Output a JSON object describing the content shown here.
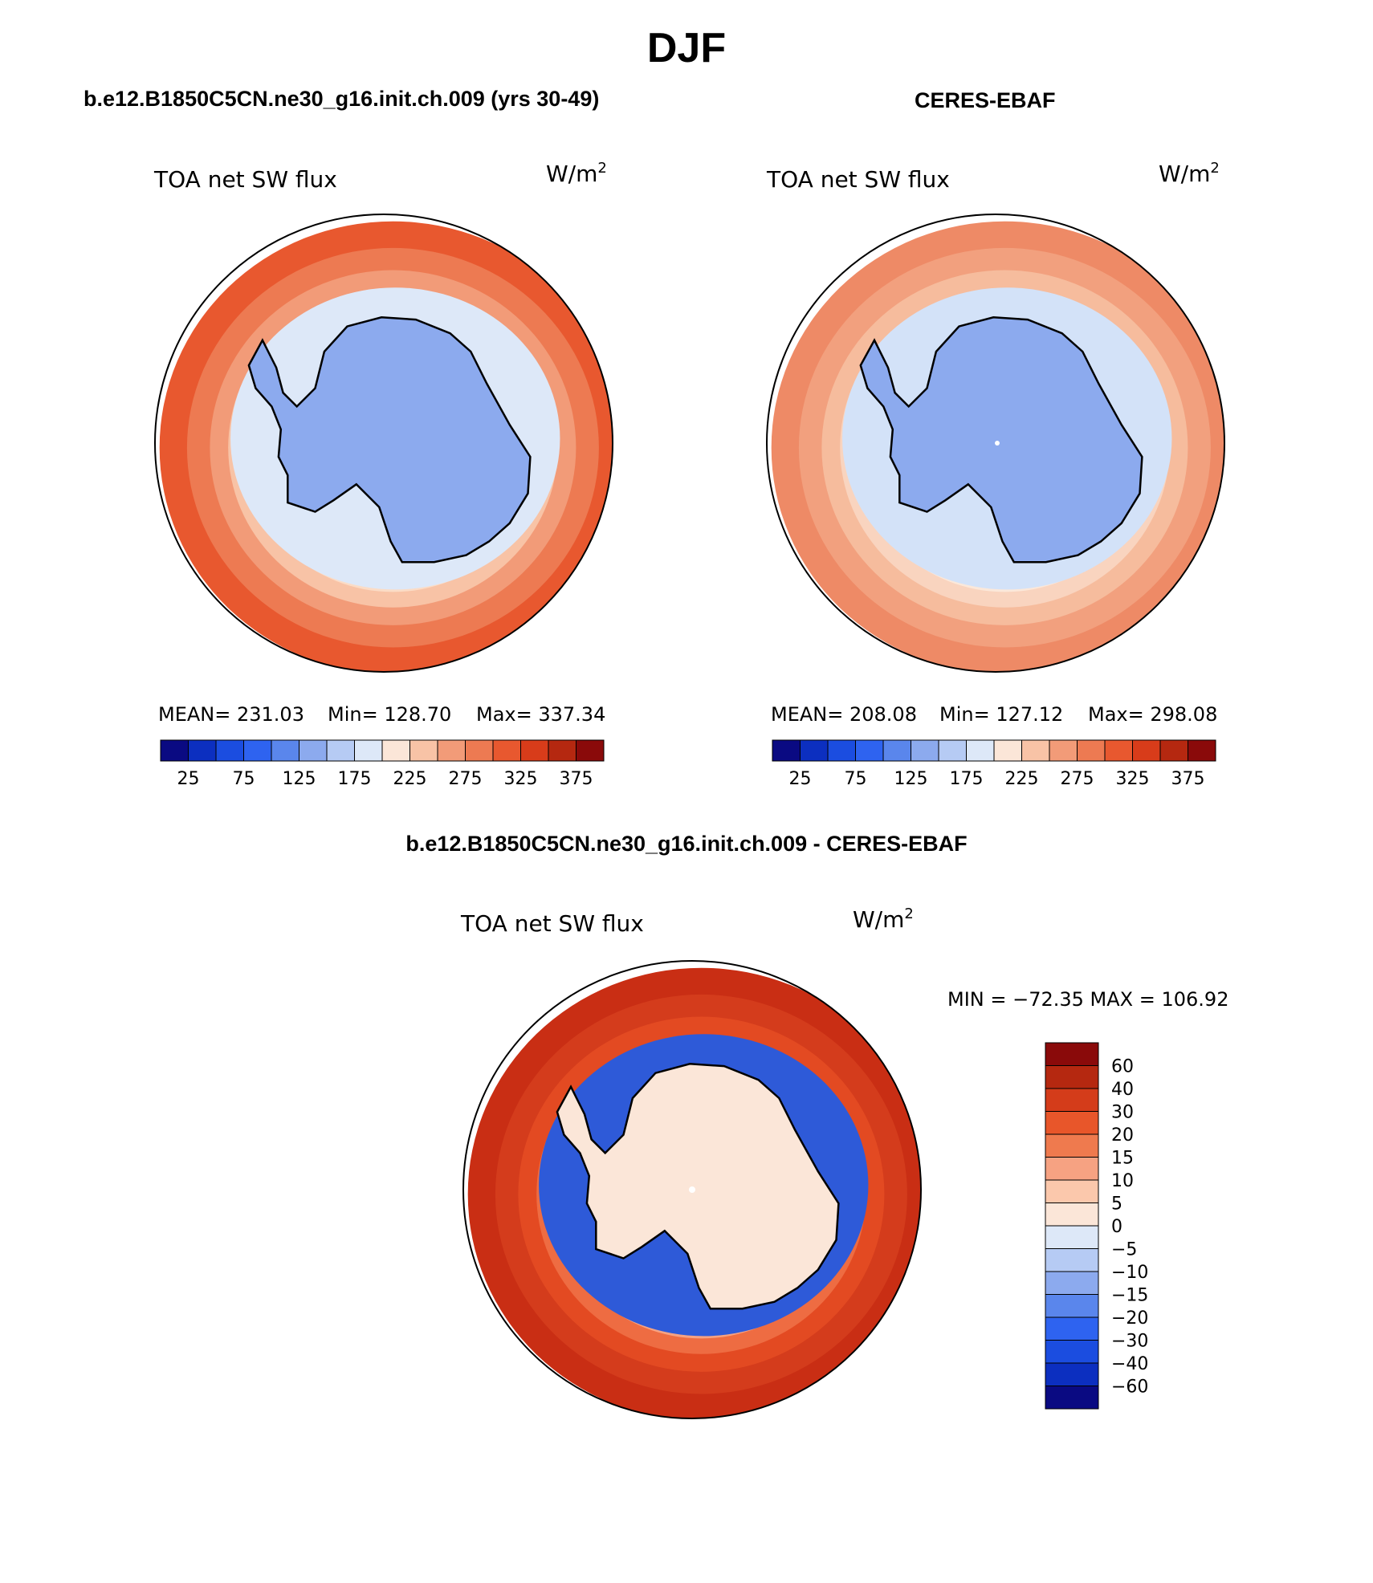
{
  "season": "DJF",
  "panels": [
    {
      "title": "b.e12.B1850C5CN.ne30_g16.init.ch.009 (yrs 30-49)",
      "variable": "TOA net SW flux",
      "units_base": "W/m",
      "units_exp": "2",
      "stats": {
        "mean": "MEAN= 231.03",
        "min": "Min= 128.70",
        "max": "Max= 337.34"
      },
      "colorbar_labels": [
        "25",
        "75",
        "125",
        "175",
        "225",
        "275",
        "325",
        "375"
      ],
      "field": {
        "continent": "#8caaee",
        "ice_belt": "#dde8f8",
        "rings": [
          "#fbdcc6",
          "#f8c3a6",
          "#f29b78",
          "#ed7a52",
          "#e8582f"
        ]
      }
    },
    {
      "title": "CERES-EBAF",
      "variable": "TOA net SW flux",
      "units_base": "W/m",
      "units_exp": "2",
      "stats": {
        "mean": "MEAN= 208.08",
        "min": "Min= 127.12",
        "max": "Max= 298.08"
      },
      "colorbar_labels": [
        "25",
        "75",
        "125",
        "175",
        "225",
        "275",
        "325",
        "375"
      ],
      "field": {
        "continent": "#8caaee",
        "ice_belt": "#d3e2f8",
        "rings": [
          "#fbe8da",
          "#f9d4bf",
          "#f6bc9d",
          "#f2a07e",
          "#ee8a66"
        ]
      }
    },
    {
      "title": "b.e12.B1850C5CN.ne30_g16.init.ch.009 - CERES-EBAF",
      "variable": "TOA net SW flux",
      "units_base": "W/m",
      "units_exp": "2",
      "minmax": "MIN = −72.35 MAX = 106.92",
      "colorbar_labels": [
        "60",
        "40",
        "30",
        "20",
        "15",
        "10",
        "5",
        "0",
        "−5",
        "−10",
        "−15",
        "−20",
        "−30",
        "−40",
        "−60"
      ],
      "field": {
        "continent": "#fbe6d8",
        "ice_belt": "#2e5ad8",
        "rings": [
          "#f6a282",
          "#ee6c42",
          "#e34a22",
          "#d43c1c",
          "#c92e14"
        ]
      }
    }
  ],
  "colors": {
    "abs_scale": [
      "#0a0a82",
      "#0c2fc0",
      "#1b4de0",
      "#2e63f0",
      "#5a86ec",
      "#8caaee",
      "#b6cbf4",
      "#dde8f8",
      "#fbe6d8",
      "#f8c3a6",
      "#f29b78",
      "#ed7a52",
      "#e8582f",
      "#d83c1a",
      "#b52810",
      "#8a0a0a"
    ],
    "diff_scale": [
      "#8a0a0a",
      "#b52810",
      "#d43c1a",
      "#e8562a",
      "#ef7a4e",
      "#f6a282",
      "#fbc8ac",
      "#fbe6d8",
      "#dde8f8",
      "#b6cbf4",
      "#8caaee",
      "#5a86ec",
      "#2e63f0",
      "#1b4de0",
      "#0c2fc0",
      "#0a0a82"
    ],
    "coast": "#000000"
  }
}
